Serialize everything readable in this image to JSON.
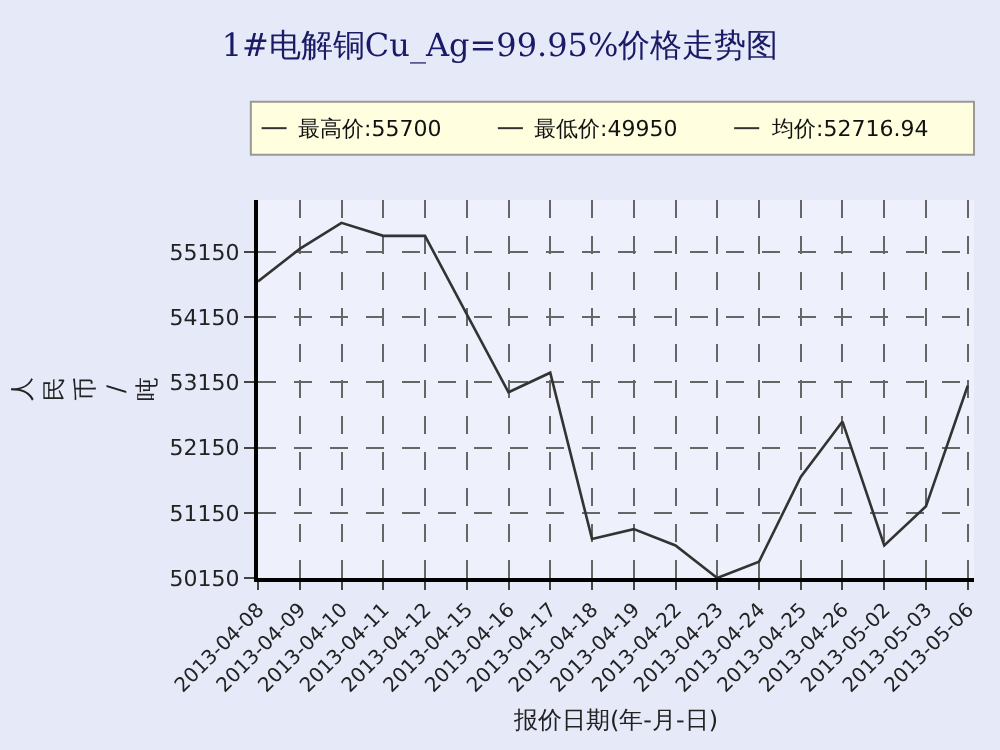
{
  "chart_data": {
    "type": "line",
    "title": "1#电解铜Cu_Ag=99.95%价格走势图",
    "xlabel": "报价日期(年-月-日)",
    "ylabel": "人民币/吨",
    "annotations": [
      "最高价:55700",
      "最低价:49950",
      "均价:52716.94"
    ],
    "categories": [
      "2013-04-08",
      "2013-04-09",
      "2013-04-10",
      "2013-04-11",
      "2013-04-12",
      "2013-04-15",
      "2013-04-16",
      "2013-04-17",
      "2013-04-18",
      "2013-04-19",
      "2013-04-22",
      "2013-04-23",
      "2013-04-24",
      "2013-04-25",
      "2013-04-26",
      "2013-05-02",
      "2013-05-03",
      "2013-05-06"
    ],
    "series": [
      {
        "color": "#333333",
        "values": [
          54700,
          55200,
          55600,
          55400,
          55400,
          54200,
          53000,
          53300,
          50750,
          50900,
          50650,
          50150,
          50400,
          51700,
          52550,
          50650,
          51250,
          53100
        ]
      }
    ],
    "ylim": [
      50150,
      55950
    ],
    "yticks": [
      50150,
      51150,
      52150,
      53150,
      54150,
      55150
    ],
    "grid": true,
    "marker": "none",
    "line_style": "solid"
  }
}
